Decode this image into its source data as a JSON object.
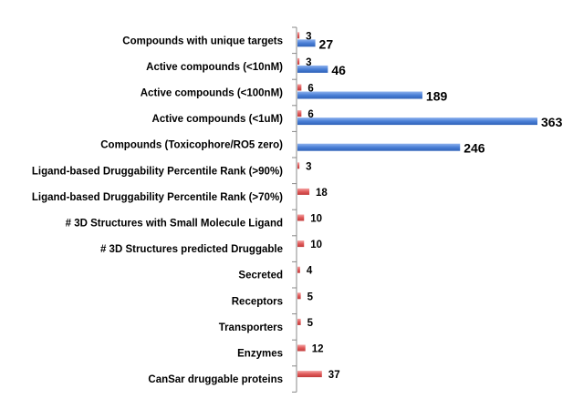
{
  "chart_data": {
    "type": "bar",
    "orientation": "horizontal",
    "title": "",
    "xlabel": "",
    "ylabel": "",
    "xlim": [
      0,
      363
    ],
    "grid": false,
    "legend": "none",
    "categories": [
      "Compounds with unique targets",
      "Active compounds (<10nM)",
      "Active compounds (<100nM)",
      "Active compounds (<1uM)",
      "Compounds (Toxicophore/RO5 zero)",
      "Ligand-based Druggability Percentile Rank (>90%)",
      "Ligand-based Druggability Percentile Rank (>70%)",
      "# 3D Structures with Small Molecule Ligand",
      "# 3D Structures predicted Druggable",
      "Secreted",
      "Receptors",
      "Transporters",
      "Enzymes",
      "CanSar druggable proteins"
    ],
    "series": [
      {
        "name": "red",
        "color": "#e05a5a",
        "values": [
          3,
          3,
          6,
          6,
          null,
          3,
          18,
          10,
          10,
          4,
          5,
          5,
          12,
          37
        ]
      },
      {
        "name": "blue",
        "color": "#4a7fd6",
        "values": [
          27,
          46,
          189,
          363,
          246,
          null,
          null,
          null,
          null,
          null,
          null,
          null,
          null,
          null
        ]
      }
    ]
  }
}
